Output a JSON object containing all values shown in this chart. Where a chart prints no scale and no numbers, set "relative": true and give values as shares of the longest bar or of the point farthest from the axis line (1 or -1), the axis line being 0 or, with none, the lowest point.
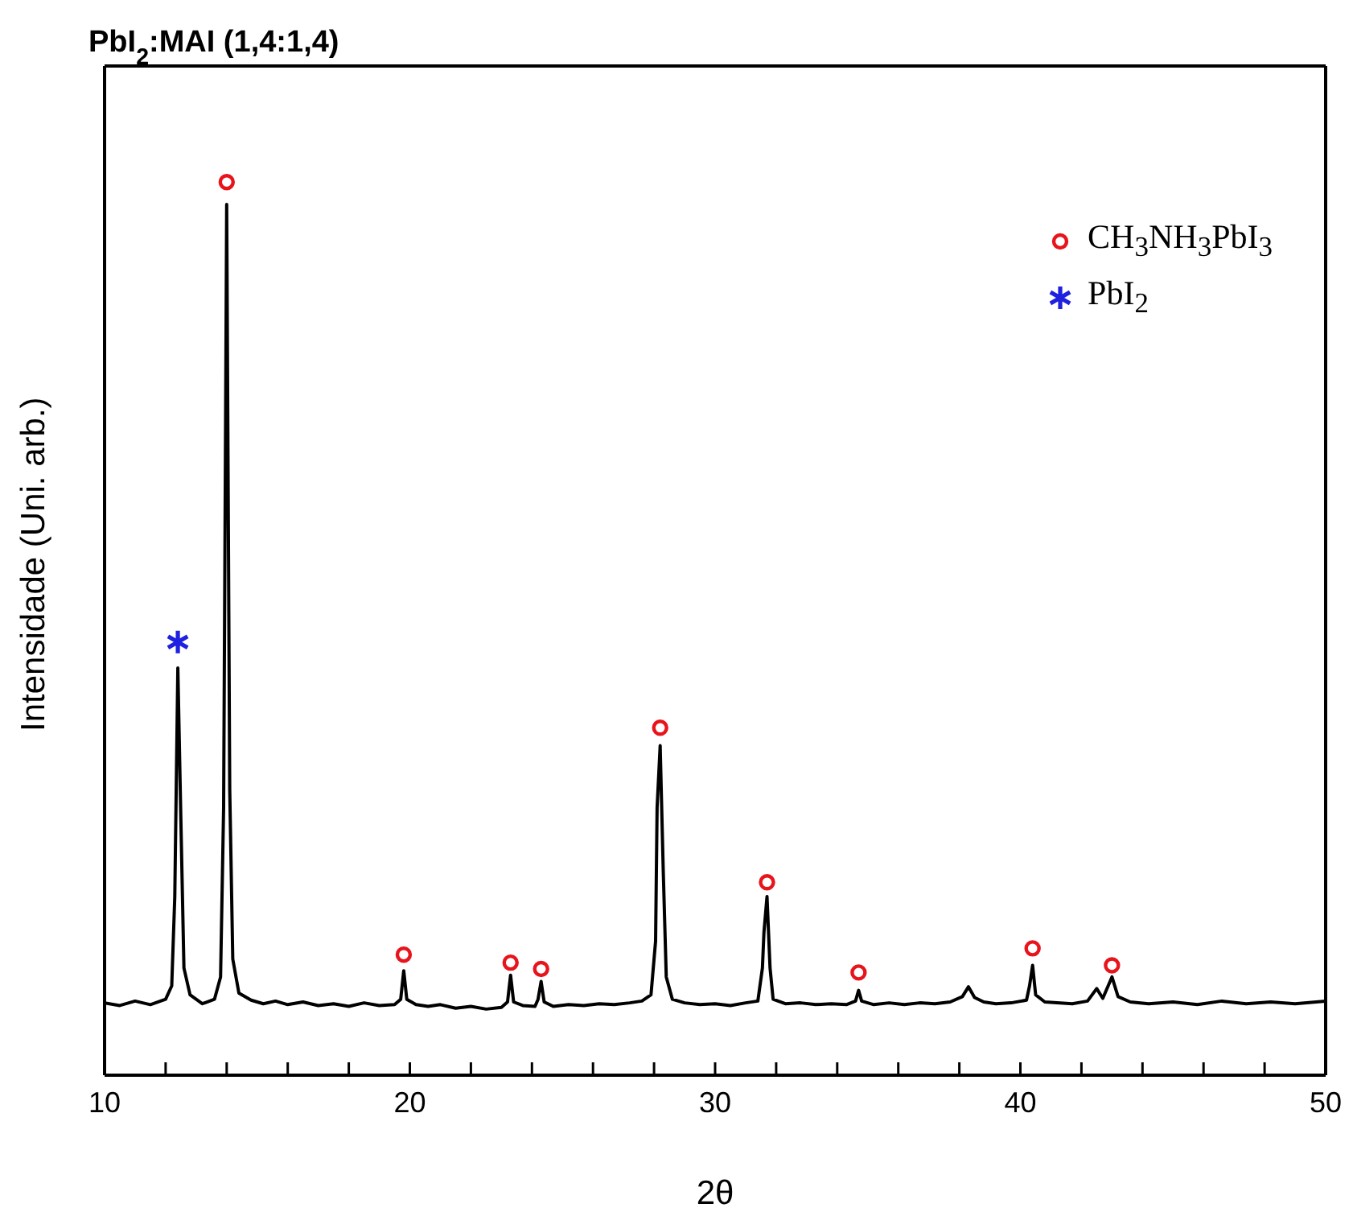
{
  "chart_data": {
    "type": "line",
    "title": "PbI$_{2}$:MAI (1,4:1,4)",
    "xlabel": "2θ",
    "ylabel": "Intensidade (Uni. arb.)",
    "relative": true,
    "xlim": [
      10,
      50
    ],
    "xticks": [
      10,
      {
        "value": 12,
        "label": null
      },
      {
        "value": 14,
        "label": null
      },
      {
        "value": 16,
        "label": null
      },
      {
        "value": 18,
        "label": null
      },
      20,
      {
        "value": 22,
        "label": null
      },
      {
        "value": 24,
        "label": null
      },
      {
        "value": 26,
        "label": null
      },
      {
        "value": 28,
        "label": null
      },
      30,
      {
        "value": 32,
        "label": null
      },
      {
        "value": 34,
        "label": null
      },
      {
        "value": 36,
        "label": null
      },
      {
        "value": 38,
        "label": null
      },
      40,
      {
        "value": 42,
        "label": null
      },
      {
        "value": 44,
        "label": null
      },
      {
        "value": 46,
        "label": null
      },
      {
        "value": 48,
        "label": null
      },
      50
    ],
    "legend": "top right",
    "series": [
      {
        "color": "#000000",
        "x": [
          10.0,
          10.5,
          11.0,
          11.5,
          12.0,
          12.2,
          12.3,
          12.4,
          12.5,
          12.6,
          12.8,
          13.2,
          13.6,
          13.8,
          13.9,
          14.0,
          14.1,
          14.2,
          14.4,
          14.8,
          15.2,
          15.6,
          16.0,
          16.5,
          17.0,
          17.5,
          18.0,
          18.5,
          19.0,
          19.5,
          19.7,
          19.8,
          19.9,
          20.2,
          20.6,
          21.0,
          21.5,
          22.0,
          22.5,
          23.0,
          23.2,
          23.3,
          23.4,
          23.7,
          24.1,
          24.2,
          24.3,
          24.4,
          24.7,
          25.2,
          25.7,
          26.2,
          26.7,
          27.2,
          27.6,
          27.9,
          28.05,
          28.1,
          28.2,
          28.3,
          28.4,
          28.6,
          29.0,
          29.5,
          30.0,
          30.5,
          31.0,
          31.4,
          31.55,
          31.6,
          31.7,
          31.8,
          31.9,
          32.3,
          32.8,
          33.3,
          33.8,
          34.3,
          34.6,
          34.7,
          34.8,
          35.2,
          35.7,
          36.2,
          36.7,
          37.2,
          37.7,
          38.1,
          38.3,
          38.5,
          38.8,
          39.2,
          39.7,
          40.2,
          40.3,
          40.4,
          40.5,
          40.8,
          41.2,
          41.7,
          42.2,
          42.5,
          42.7,
          43.0,
          43.2,
          43.6,
          44.2,
          45.0,
          45.8,
          46.6,
          47.4,
          48.2,
          49.0,
          50.0
        ],
        "values": [
          0.081,
          0.078,
          0.083,
          0.079,
          0.085,
          0.1,
          0.2,
          0.456,
          0.285,
          0.12,
          0.09,
          0.08,
          0.085,
          0.11,
          0.3,
          0.975,
          0.32,
          0.13,
          0.092,
          0.084,
          0.08,
          0.083,
          0.079,
          0.082,
          0.078,
          0.08,
          0.077,
          0.081,
          0.078,
          0.079,
          0.085,
          0.117,
          0.085,
          0.079,
          0.077,
          0.079,
          0.075,
          0.077,
          0.074,
          0.076,
          0.082,
          0.112,
          0.082,
          0.078,
          0.077,
          0.085,
          0.105,
          0.082,
          0.077,
          0.079,
          0.078,
          0.08,
          0.079,
          0.081,
          0.083,
          0.09,
          0.15,
          0.3,
          0.369,
          0.23,
          0.11,
          0.085,
          0.081,
          0.079,
          0.08,
          0.078,
          0.081,
          0.083,
          0.12,
          0.16,
          0.2,
          0.12,
          0.085,
          0.08,
          0.081,
          0.079,
          0.08,
          0.079,
          0.083,
          0.095,
          0.083,
          0.079,
          0.081,
          0.079,
          0.081,
          0.08,
          0.082,
          0.088,
          0.099,
          0.087,
          0.082,
          0.08,
          0.081,
          0.084,
          0.1,
          0.123,
          0.09,
          0.082,
          0.081,
          0.08,
          0.083,
          0.097,
          0.086,
          0.11,
          0.088,
          0.082,
          0.08,
          0.082,
          0.079,
          0.083,
          0.08,
          0.082,
          0.08,
          0.083
        ]
      },
      {
        "type": "scatter",
        "name": "CH$_{3}$NH$_{3}$PbI$_{3}$",
        "color": "#e8141c",
        "marker": "circle",
        "x": [
          14.0,
          19.8,
          23.3,
          24.3,
          28.2,
          31.7,
          34.7,
          40.4,
          43.0
        ],
        "values": [
          1.0,
          0.135,
          0.126,
          0.119,
          0.389,
          0.216,
          0.115,
          0.142,
          0.123
        ]
      },
      {
        "type": "scatter",
        "name": "PbI$_{2}$",
        "color": "#2020e0",
        "marker": "cross",
        "x": [
          12.4
        ],
        "values": [
          0.485
        ]
      }
    ]
  }
}
